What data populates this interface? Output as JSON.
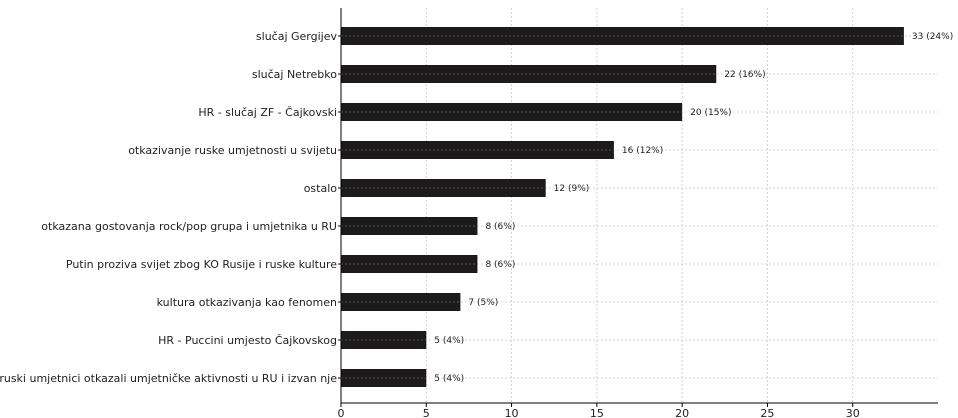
{
  "chart_data": {
    "type": "bar",
    "orientation": "horizontal",
    "categories": [
      "slučaj Gergijev",
      "slučaj Netrebko",
      "HR - slučaj ZF - Čajkovski",
      "otkazivanje ruske umjetnosti u svijetu",
      "ostalo",
      "otkazana gostovanja rock/pop grupa i umjetnika u RU",
      "Putin proziva svijet zbog KO Rusije i ruske kulture",
      "kultura otkazivanja kao fenomen",
      "HR - Puccini umjesto Čajkovskog",
      "ruski umjetnici otkazali umjetničke aktivnosti u RU i izvan nje"
    ],
    "values": [
      33,
      22,
      20,
      16,
      12,
      8,
      8,
      7,
      5,
      5
    ],
    "data_labels": [
      "33 (24%)",
      "22 (16%)",
      "20 (15%)",
      "16 (12%)",
      "12 (9%)",
      "8 (6%)",
      "8 (6%)",
      "7 (5%)",
      "5 (4%)",
      "5 (4%)"
    ],
    "x_ticks": [
      0,
      5,
      10,
      15,
      20,
      25,
      30
    ],
    "xlim": [
      0,
      35
    ],
    "grid": true,
    "bar_color": "#1c1a1a",
    "grid_color": "#c8c8c8"
  }
}
